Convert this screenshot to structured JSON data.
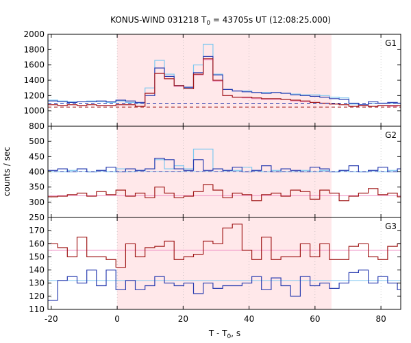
{
  "chart_data": {
    "type": "line",
    "title_main": "KONUS-WIND 031218 T",
    "title_sub": "0",
    "title_rest": " = 43705s UT (12:08:25.000)",
    "xlabel_main": "T - T",
    "xlabel_sub": "0",
    "xlabel_rest": ", s",
    "ylabel": "counts / sec",
    "xlim": [
      -21,
      86
    ],
    "x_ticks": [
      -20,
      0,
      20,
      40,
      60,
      80
    ],
    "shaded_interval": [
      0,
      65
    ],
    "colors": {
      "shade": "#ffe8ea",
      "dark_blue": "#2a3db0",
      "light_blue": "#7ec8f0",
      "dark_red": "#a01818",
      "pink": "#ee88c0",
      "axis": "#000000",
      "grid": "#aaaaaa"
    },
    "panels": [
      {
        "name": "G1",
        "ylim": [
          800,
          2000
        ],
        "y_ticks": [
          800,
          1000,
          1200,
          1400,
          1600,
          1800,
          2000
        ],
        "series": [
          {
            "color": "light_blue",
            "dash": false,
            "width": 1.2,
            "x0": -21,
            "step": 2.944,
            "values": [
              1140,
              1130,
              1120,
              1120,
              1130,
              1120,
              1110,
              1130,
              1110,
              1100,
              1300,
              1660,
              1480,
              1330,
              1300,
              1600,
              1870,
              1480,
              1280,
              1260,
              1260,
              1240,
              1240,
              1240,
              1230,
              1220,
              1210,
              1210,
              1200,
              1180,
              1170,
              1090,
              1080,
              1100,
              1100,
              1100,
              1100
            ]
          },
          {
            "color": "dark_blue",
            "dash": false,
            "width": 1.2,
            "x0": -21,
            "step": 2.944,
            "values": [
              1130,
              1120,
              1110,
              1120,
              1120,
              1130,
              1120,
              1140,
              1130,
              1110,
              1200,
              1560,
              1450,
              1330,
              1310,
              1500,
              1710,
              1470,
              1280,
              1260,
              1250,
              1240,
              1230,
              1240,
              1230,
              1210,
              1200,
              1190,
              1180,
              1160,
              1150,
              1100,
              1080,
              1120,
              1100,
              1110,
              1100
            ]
          },
          {
            "color": "pink",
            "dash": false,
            "width": 1.2,
            "x0": -21,
            "step": 2.944,
            "values": [
              1080,
              1070,
              1080,
              1070,
              1080,
              1070,
              1070,
              1080,
              1080,
              1060,
              1230,
              1490,
              1420,
              1320,
              1290,
              1470,
              1670,
              1390,
              1200,
              1180,
              1170,
              1160,
              1150,
              1150,
              1150,
              1130,
              1120,
              1110,
              1100,
              1090,
              1080,
              1060,
              1070,
              1060,
              1070,
              1060,
              1070
            ]
          },
          {
            "color": "dark_red",
            "dash": false,
            "width": 1.2,
            "x0": -21,
            "step": 2.944,
            "values": [
              1080,
              1070,
              1080,
              1070,
              1080,
              1070,
              1070,
              1080,
              1080,
              1060,
              1230,
              1490,
              1420,
              1330,
              1290,
              1480,
              1680,
              1400,
              1200,
              1180,
              1180,
              1170,
              1160,
              1160,
              1150,
              1140,
              1130,
              1110,
              1100,
              1090,
              1080,
              1060,
              1070,
              1060,
              1070,
              1070,
              1070
            ]
          },
          {
            "color": "dark_blue",
            "dash": true,
            "width": 1,
            "level": 1100
          },
          {
            "color": "dark_red",
            "dash": true,
            "width": 1,
            "level": 1050
          }
        ]
      },
      {
        "name": "G2",
        "ylim": [
          250,
          550
        ],
        "y_ticks": [
          250,
          300,
          350,
          400,
          450,
          500
        ],
        "series": [
          {
            "color": "light_blue",
            "dash": false,
            "width": 1.2,
            "x0": -21,
            "step": 2.944,
            "values": [
              400,
              400,
              405,
              410,
              400,
              405,
              400,
              410,
              400,
              405,
              410,
              440,
              410,
              420,
              410,
              475,
              475,
              410,
              405,
              405,
              415,
              405,
              400,
              405,
              400,
              400,
              405,
              400,
              405,
              400,
              405,
              400,
              400,
              405,
              400,
              405,
              400
            ]
          },
          {
            "color": "dark_blue",
            "dash": false,
            "width": 1.2,
            "x0": -21,
            "step": 2.944,
            "values": [
              405,
              410,
              400,
              410,
              400,
              405,
              415,
              400,
              410,
              405,
              410,
              445,
              440,
              410,
              405,
              440,
              405,
              410,
              405,
              415,
              400,
              405,
              420,
              400,
              410,
              405,
              400,
              415,
              410,
              400,
              405,
              420,
              400,
              405,
              415,
              400,
              410
            ]
          },
          {
            "color": "light_blue",
            "dash": false,
            "width": 1,
            "level": 400
          },
          {
            "color": "pink",
            "dash": false,
            "width": 1,
            "level": 322
          },
          {
            "color": "dark_red",
            "dash": false,
            "width": 1.2,
            "x0": -21,
            "step": 2.944,
            "values": [
              318,
              320,
              325,
              330,
              320,
              335,
              325,
              340,
              320,
              330,
              315,
              350,
              330,
              315,
              320,
              335,
              358,
              340,
              315,
              330,
              325,
              305,
              325,
              330,
              320,
              340,
              335,
              310,
              340,
              330,
              305,
              320,
              330,
              345,
              325,
              330,
              318
            ]
          },
          {
            "color": "dark_blue",
            "dash": true,
            "width": 1,
            "level": 400
          }
        ]
      },
      {
        "name": "G3",
        "ylim": [
          110,
          180
        ],
        "y_ticks": [
          110,
          120,
          130,
          140,
          150,
          160,
          170
        ],
        "series": [
          {
            "color": "pink",
            "dash": false,
            "width": 1,
            "level": 155
          },
          {
            "color": "dark_red",
            "dash": false,
            "width": 1.2,
            "x0": -21,
            "step": 2.944,
            "values": [
              160,
              157,
              150,
              165,
              150,
              150,
              148,
              142,
              160,
              150,
              157,
              158,
              162,
              148,
              150,
              152,
              162,
              160,
              172,
              175,
              155,
              148,
              165,
              148,
              150,
              150,
              160,
              150,
              160,
              148,
              148,
              158,
              160,
              150,
              148,
              158,
              160
            ]
          },
          {
            "color": "light_blue",
            "dash": false,
            "width": 1,
            "level": 132
          },
          {
            "color": "dark_blue",
            "dash": false,
            "width": 1.2,
            "x0": -21,
            "step": 2.944,
            "values": [
              117,
              132,
              135,
              130,
              140,
              128,
              140,
              125,
              132,
              125,
              128,
              135,
              130,
              128,
              130,
              122,
              130,
              126,
              128,
              128,
              130,
              135,
              125,
              134,
              128,
              120,
              135,
              128,
              130,
              126,
              130,
              138,
              140,
              130,
              135,
              130,
              125
            ]
          }
        ]
      }
    ]
  }
}
